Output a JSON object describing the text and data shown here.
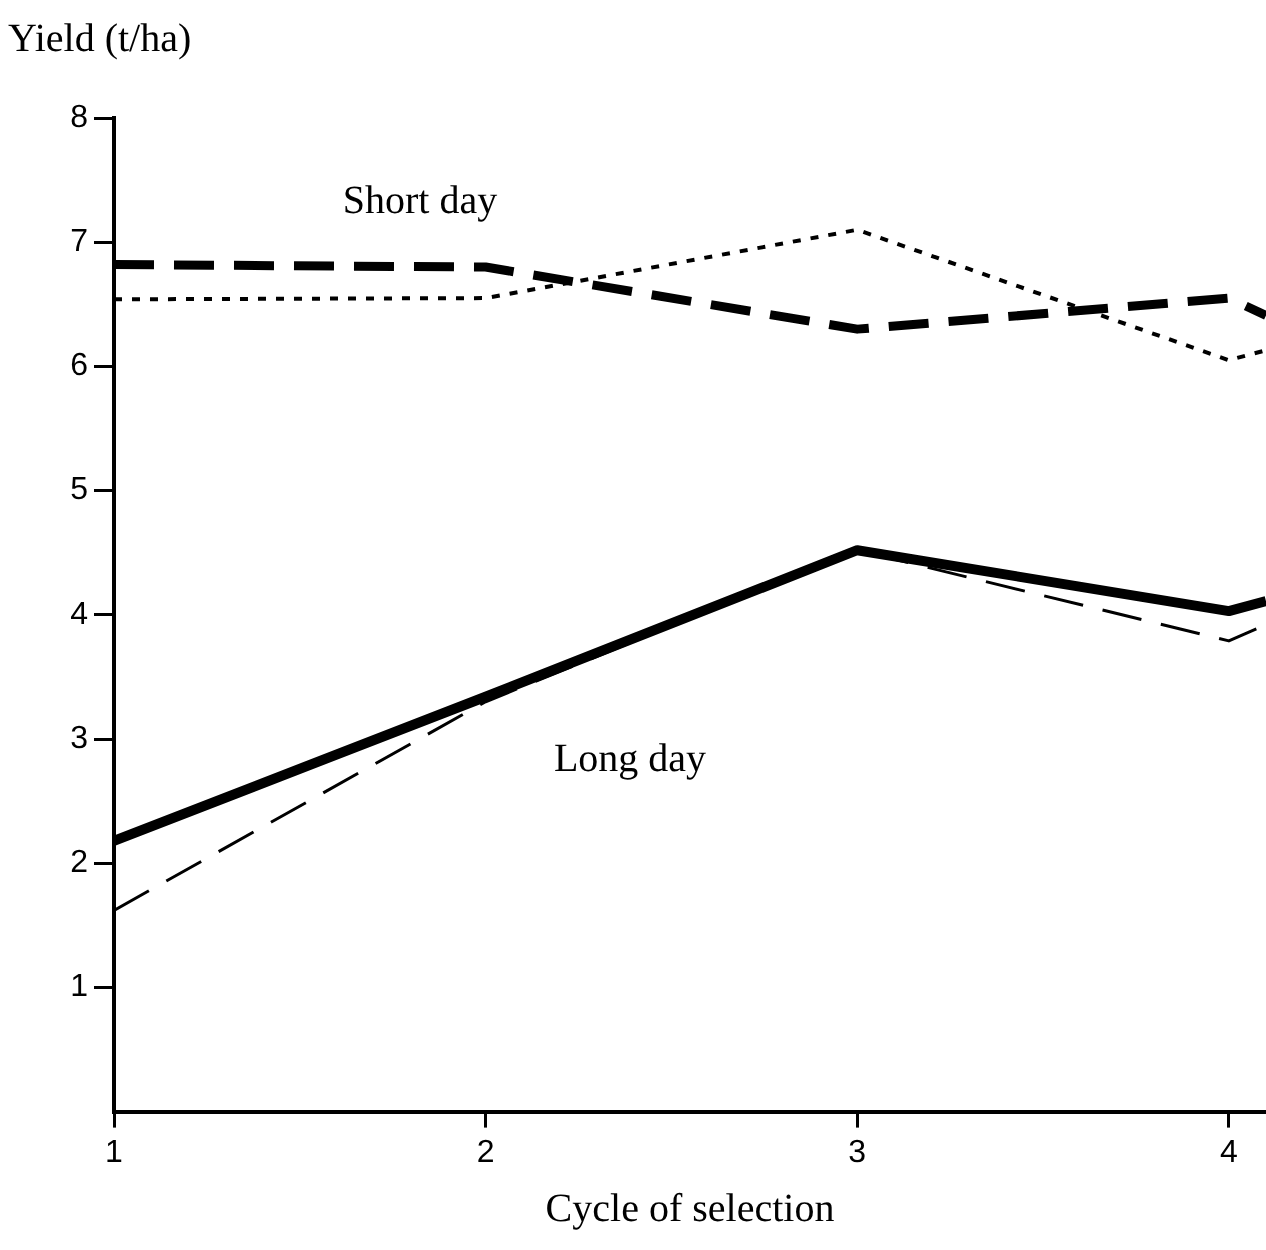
{
  "chart_data": {
    "type": "line",
    "ylabel": "Yield (t/ha)",
    "xlabel": "Cycle of selection",
    "x": [
      1,
      2,
      3,
      4,
      4.1
    ],
    "series": [
      {
        "color": "#000000",
        "line_style": "dashed",
        "values": [
          6.82,
          6.8,
          6.3,
          6.55,
          6.41
        ]
      },
      {
        "color": "#000000",
        "line_style": "dotted",
        "values": [
          6.54,
          6.55,
          7.1,
          6.05,
          6.13
        ]
      },
      {
        "color": "#000000",
        "line_style": "solid",
        "values": [
          2.18,
          3.34,
          4.52,
          4.03,
          4.11
        ]
      },
      {
        "color": "#000000",
        "line_style": "dashed",
        "values": [
          1.62,
          3.3,
          4.52,
          3.79,
          3.92
        ]
      }
    ],
    "xlim": [
      1,
      4.1
    ],
    "xticks": [
      1,
      2,
      3,
      4
    ],
    "ylim": [
      0,
      8
    ],
    "yticks": [
      1,
      2,
      3,
      4,
      5,
      6,
      7,
      8
    ],
    "grid": false,
    "legend": false,
    "marker": "none",
    "annotations": [
      "Short day",
      "Long day"
    ]
  }
}
